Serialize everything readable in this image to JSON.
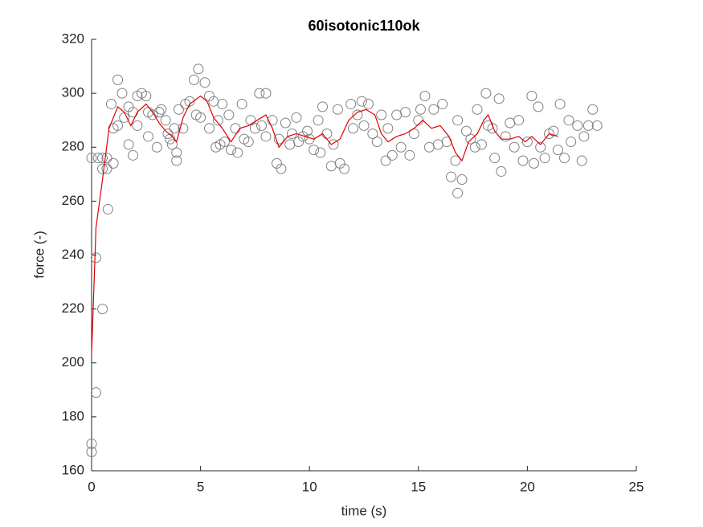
{
  "chart_data": {
    "type": "scatter",
    "title": "60isotonic110ok",
    "x_label": "time (s)",
    "y_label": "force (-)",
    "xlim": [
      0,
      25
    ],
    "xticks": [
      0,
      5,
      10,
      15,
      20,
      25
    ],
    "ylim": [
      160,
      320
    ],
    "yticks": [
      160,
      180,
      200,
      220,
      240,
      260,
      280,
      300,
      320
    ],
    "series": [
      {
        "type": "scatter",
        "color": "#808080",
        "x": [
          0,
          0,
          0,
          0.2,
          0.2,
          0.3,
          0.5,
          0.5,
          0.5,
          0.7,
          0.7,
          0.75,
          0.9,
          1.0,
          1.0,
          1.2,
          1.2,
          1.4,
          1.5,
          1.7,
          1.7,
          1.9,
          1.9,
          2.1,
          2.1,
          2.3,
          2.5,
          2.6,
          2.6,
          2.8,
          3.0,
          3.1,
          3.2,
          3.4,
          3.5,
          3.6,
          3.7,
          3.8,
          3.9,
          3.9,
          4.0,
          4.2,
          4.3,
          4.5,
          4.7,
          4.8,
          4.9,
          5.0,
          5.2,
          5.4,
          5.4,
          5.6,
          5.7,
          5.8,
          5.9,
          6.0,
          6.1,
          6.3,
          6.4,
          6.6,
          6.7,
          6.9,
          7.0,
          7.2,
          7.3,
          7.5,
          7.7,
          7.8,
          8.0,
          8.0,
          8.3,
          8.5,
          8.6,
          8.7,
          8.9,
          9.1,
          9.2,
          9.4,
          9.5,
          9.7,
          9.9,
          10.0,
          10.2,
          10.4,
          10.5,
          10.6,
          10.8,
          11.0,
          11.1,
          11.3,
          11.4,
          11.6,
          11.9,
          12.0,
          12.2,
          12.4,
          12.5,
          12.7,
          12.9,
          13.1,
          13.3,
          13.5,
          13.6,
          13.8,
          14.0,
          14.2,
          14.4,
          14.6,
          14.8,
          15.0,
          15.1,
          15.3,
          15.5,
          15.7,
          15.9,
          16.1,
          16.3,
          16.5,
          16.7,
          16.8,
          16.8,
          17.0,
          17.2,
          17.4,
          17.6,
          17.7,
          17.9,
          18.1,
          18.2,
          18.4,
          18.5,
          18.7,
          18.8,
          19.0,
          19.2,
          19.4,
          19.6,
          19.8,
          20.0,
          20.2,
          20.3,
          20.5,
          20.6,
          20.8,
          21.0,
          21.2,
          21.4,
          21.5,
          21.7,
          21.9,
          22.0,
          22.3,
          22.5,
          22.6,
          22.8,
          23.0,
          23.2
        ],
        "values": [
          170,
          167,
          276,
          239,
          189,
          276,
          220,
          276,
          272,
          276,
          272,
          257,
          296,
          287,
          274,
          305,
          288,
          300,
          291,
          295,
          281,
          277,
          293,
          299,
          288,
          300,
          299,
          284,
          293,
          292,
          280,
          293,
          294,
          290,
          285,
          283,
          281,
          287,
          278,
          275,
          294,
          287,
          296,
          297,
          305,
          292,
          309,
          291,
          304,
          299,
          287,
          297,
          280,
          290,
          281,
          296,
          282,
          292,
          279,
          287,
          278,
          296,
          283,
          282,
          290,
          287,
          300,
          288,
          300,
          284,
          290,
          274,
          283,
          272,
          289,
          281,
          285,
          291,
          282,
          284,
          286,
          283,
          279,
          290,
          278,
          295,
          285,
          273,
          281,
          294,
          274,
          272,
          296,
          287,
          292,
          297,
          288,
          296,
          285,
          282,
          292,
          275,
          287,
          277,
          292,
          280,
          293,
          277,
          285,
          290,
          294,
          299,
          280,
          294,
          281,
          296,
          282,
          269,
          275,
          263,
          290,
          268,
          286,
          283,
          280,
          294,
          281,
          300,
          288,
          287,
          276,
          298,
          271,
          284,
          289,
          280,
          290,
          275,
          282,
          299,
          274,
          295,
          280,
          276,
          285,
          286,
          279,
          296,
          276,
          290,
          282,
          288,
          275,
          284,
          288,
          294,
          288
        ]
      },
      {
        "type": "line",
        "color": "#e00000",
        "x": [
          0,
          0.2,
          0.5,
          0.8,
          1.2,
          1.5,
          1.8,
          2.1,
          2.5,
          2.8,
          3.1,
          3.4,
          3.7,
          3.9,
          4.2,
          4.5,
          5.0,
          5.3,
          5.6,
          6.0,
          6.4,
          6.8,
          7.2,
          7.6,
          8.0,
          8.3,
          8.6,
          9.0,
          9.4,
          9.8,
          10.2,
          10.6,
          11.0,
          11.4,
          11.8,
          12.2,
          12.6,
          13.0,
          13.3,
          13.6,
          14.0,
          14.4,
          14.8,
          15.2,
          15.6,
          16.0,
          16.4,
          16.7,
          17.0,
          17.3,
          17.7,
          18.0,
          18.2,
          18.5,
          18.8,
          19.2,
          19.6,
          19.9,
          20.2,
          20.6,
          21.0,
          21.4
        ],
        "values": [
          203,
          250,
          268,
          287,
          295,
          293,
          288,
          293,
          296,
          293,
          289,
          286,
          284,
          282,
          291,
          296,
          299,
          297,
          291,
          287,
          282,
          287,
          288,
          290,
          292,
          287,
          280,
          284,
          285,
          284,
          283,
          285,
          281,
          283,
          290,
          293,
          294,
          292,
          285,
          282,
          284,
          285,
          287,
          290,
          287,
          288,
          284,
          278,
          275,
          282,
          285,
          290,
          292,
          286,
          283,
          283,
          284,
          282,
          284,
          281,
          285,
          284
        ]
      }
    ]
  }
}
